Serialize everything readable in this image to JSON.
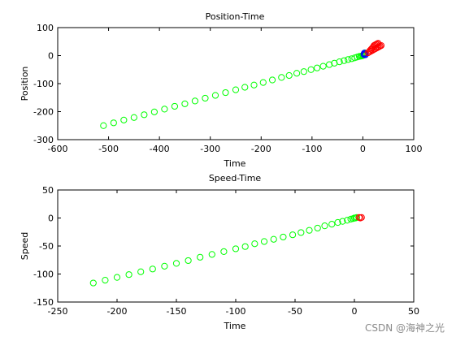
{
  "chart_data": [
    {
      "type": "scatter",
      "title": "Position-Time",
      "xlabel": "Time",
      "ylabel": "Position",
      "xlim": [
        -600,
        100
      ],
      "ylim": [
        -300,
        100
      ],
      "xticks": [
        "-600",
        "-500",
        "-400",
        "-300",
        "-200",
        "-100",
        "0",
        "100"
      ],
      "yticks": [
        "-300",
        "-200",
        "-100",
        "0",
        "100"
      ],
      "grid": false,
      "series": [
        {
          "marker": "circle",
          "color": "#00ff00",
          "points": [
            [
              -510,
              -250
            ],
            [
              -490,
              -240
            ],
            [
              -470,
              -230
            ],
            [
              -450,
              -221
            ],
            [
              -430,
              -211
            ],
            [
              -410,
              -201
            ],
            [
              -390,
              -191
            ],
            [
              -370,
              -181
            ],
            [
              -350,
              -172
            ],
            [
              -330,
              -162
            ],
            [
              -310,
              -152
            ],
            [
              -290,
              -142
            ],
            [
              -270,
              -132
            ],
            [
              -250,
              -122
            ],
            [
              -232,
              -113
            ],
            [
              -214,
              -105
            ],
            [
              -196,
              -96
            ],
            [
              -178,
              -87
            ],
            [
              -160,
              -78
            ],
            [
              -145,
              -71
            ],
            [
              -130,
              -63
            ],
            [
              -116,
              -57
            ],
            [
              -102,
              -50
            ],
            [
              -90,
              -44
            ],
            [
              -78,
              -38
            ],
            [
              -66,
              -32
            ],
            [
              -56,
              -27
            ],
            [
              -46,
              -22
            ],
            [
              -37,
              -18
            ],
            [
              -29,
              -14
            ],
            [
              -22,
              -11
            ],
            [
              -16,
              -8
            ],
            [
              -11,
              -5
            ],
            [
              -7,
              -3
            ],
            [
              -4,
              -2
            ],
            [
              -2,
              -1
            ],
            [
              0,
              0
            ],
            [
              1,
              2
            ],
            [
              2,
              5
            ],
            [
              3,
              8
            ],
            [
              4,
              10
            ]
          ]
        },
        {
          "marker": "circle",
          "color": "#0000ff",
          "points": [
            [
              2,
              4
            ],
            [
              4,
              6
            ],
            [
              5,
              3
            ],
            [
              3,
              9
            ]
          ]
        },
        {
          "marker": "circle",
          "color": "#ff0000",
          "points": [
            [
              10,
              10
            ],
            [
              13,
              13
            ],
            [
              16,
              16
            ],
            [
              19,
              19
            ],
            [
              22,
              22
            ],
            [
              25,
              25
            ],
            [
              28,
              28
            ],
            [
              30,
              30
            ],
            [
              32,
              32
            ],
            [
              34,
              34
            ],
            [
              36,
              36
            ],
            [
              22,
              36
            ],
            [
              24,
              38
            ],
            [
              26,
              40
            ],
            [
              28,
              42
            ],
            [
              30,
              44
            ],
            [
              14,
              18
            ],
            [
              16,
              22
            ],
            [
              18,
              26
            ],
            [
              20,
              30
            ]
          ]
        }
      ]
    },
    {
      "type": "scatter",
      "title": "Speed-Time",
      "xlabel": "Time",
      "ylabel": "Speed",
      "xlim": [
        -250,
        50
      ],
      "ylim": [
        -150,
        50
      ],
      "xticks": [
        "-250",
        "-200",
        "-150",
        "-100",
        "-50",
        "0",
        "50"
      ],
      "yticks": [
        "-150",
        "-100",
        "-50",
        "0",
        "50"
      ],
      "grid": false,
      "series": [
        {
          "marker": "circle",
          "color": "#00ff00",
          "points": [
            [
              -220,
              -116
            ],
            [
              -210,
              -111
            ],
            [
              -200,
              -106
            ],
            [
              -190,
              -101
            ],
            [
              -180,
              -96
            ],
            [
              -170,
              -91
            ],
            [
              -160,
              -86
            ],
            [
              -150,
              -81
            ],
            [
              -140,
              -76
            ],
            [
              -130,
              -70
            ],
            [
              -120,
              -65
            ],
            [
              -110,
              -60
            ],
            [
              -100,
              -55
            ],
            [
              -92,
              -51
            ],
            [
              -84,
              -46
            ],
            [
              -76,
              -42
            ],
            [
              -68,
              -38
            ],
            [
              -60,
              -34
            ],
            [
              -52,
              -30
            ],
            [
              -45,
              -26
            ],
            [
              -38,
              -22
            ],
            [
              -31,
              -18
            ],
            [
              -25,
              -14
            ],
            [
              -19,
              -11
            ],
            [
              -14,
              -8
            ],
            [
              -10,
              -6
            ],
            [
              -6,
              -4
            ],
            [
              -3,
              -2
            ],
            [
              -1,
              -1
            ],
            [
              0,
              0
            ],
            [
              1,
              0
            ],
            [
              2,
              1
            ]
          ]
        },
        {
          "marker": "circle",
          "color": "#ff0000",
          "points": [
            [
              4,
              1
            ],
            [
              5,
              0
            ],
            [
              6,
              1
            ]
          ]
        }
      ]
    }
  ],
  "watermark": "CSDN @海神之光"
}
